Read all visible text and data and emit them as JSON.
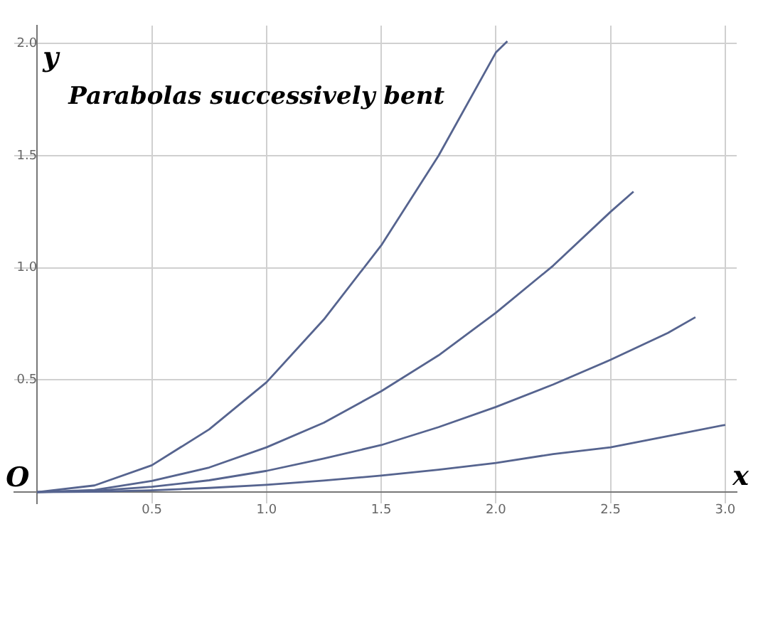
{
  "chart_data": {
    "type": "line",
    "title": "Parabolas successively bent",
    "xlabel": "x",
    "ylabel": "y",
    "annotations": [
      "O"
    ],
    "series": [
      {
        "color": "#56648f",
        "x": [
          0,
          0.25,
          0.5,
          0.75,
          1,
          1.25,
          1.5,
          1.75,
          2,
          2.05
        ],
        "values": [
          0,
          0.03,
          0.12,
          0.28,
          0.49,
          0.77,
          1.1,
          1.5,
          1.96,
          2.01
        ]
      },
      {
        "color": "#56648f",
        "x": [
          0,
          0.25,
          0.5,
          0.75,
          1,
          1.25,
          1.5,
          1.75,
          2,
          2.25,
          2.5,
          2.6
        ],
        "values": [
          0,
          0.01,
          0.05,
          0.11,
          0.2,
          0.31,
          0.45,
          0.61,
          0.8,
          1.01,
          1.25,
          1.34
        ]
      },
      {
        "color": "#56648f",
        "x": [
          0,
          0.25,
          0.5,
          0.75,
          1,
          1.25,
          1.5,
          1.75,
          2,
          2.25,
          2.5,
          2.75,
          2.87
        ],
        "values": [
          0,
          0.006,
          0.024,
          0.053,
          0.095,
          0.15,
          0.21,
          0.29,
          0.38,
          0.48,
          0.59,
          0.71,
          0.78
        ]
      },
      {
        "color": "#56648f",
        "x": [
          0,
          0.25,
          0.5,
          0.75,
          1,
          1.25,
          1.5,
          1.75,
          2,
          2.25,
          2.5,
          2.75,
          3
        ],
        "values": [
          0,
          0.002,
          0.008,
          0.019,
          0.033,
          0.052,
          0.074,
          0.1,
          0.13,
          0.17,
          0.2,
          0.25,
          0.3
        ]
      }
    ],
    "xlim": [
      -0.1,
      3.05
    ],
    "ylim": [
      -0.05,
      2.08
    ],
    "xticks": [
      0.5,
      {
        "value": 1,
        "label": "1.0"
      },
      1.5,
      {
        "value": 2,
        "label": "2.0"
      },
      2.5,
      {
        "value": 3,
        "label": "3.0"
      }
    ],
    "yticks": [
      0.5,
      {
        "value": 1,
        "label": "1.0"
      },
      1.5,
      {
        "value": 2,
        "label": "2.0"
      }
    ],
    "grid": true,
    "legend": false,
    "marker": "none",
    "line_style": "solid"
  }
}
